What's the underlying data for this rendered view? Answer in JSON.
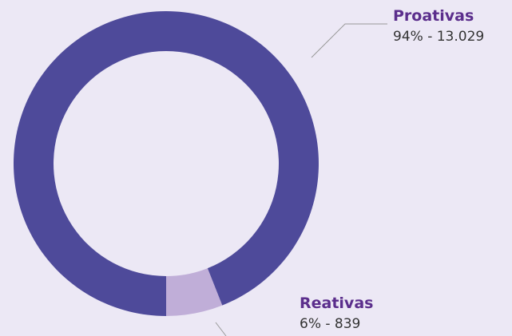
{
  "chart_data": {
    "type": "donut",
    "categories": [
      "Proativas",
      "Reativas"
    ],
    "values": [
      94,
      6
    ],
    "value_labels": [
      "94% - 13.029",
      "6% - 839"
    ],
    "colors": [
      "#4e4a9a",
      "#c0aed8"
    ]
  }
}
